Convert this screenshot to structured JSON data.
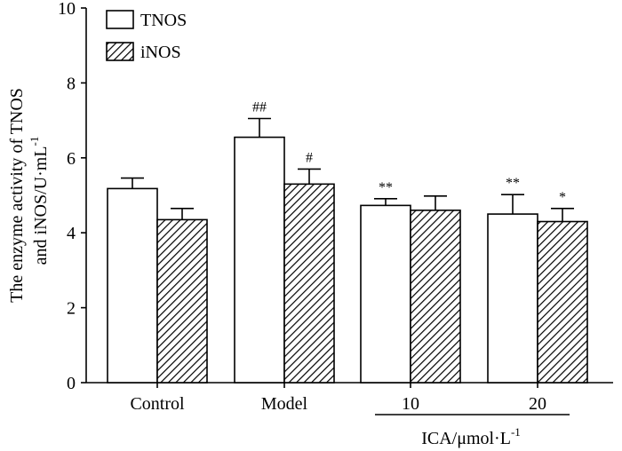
{
  "chart_data": {
    "type": "bar",
    "categories": [
      "Control",
      "Model",
      "10",
      "20"
    ],
    "series": [
      {
        "name": "TNOS",
        "pattern": "solid-white",
        "values": [
          5.18,
          6.55,
          4.73,
          4.5
        ],
        "errors": [
          0.28,
          0.5,
          0.18,
          0.52
        ],
        "annotations": [
          "",
          "##",
          "**",
          "**"
        ]
      },
      {
        "name": "iNOS",
        "pattern": "diagonal-hatch",
        "values": [
          4.35,
          5.3,
          4.6,
          4.3
        ],
        "errors": [
          0.3,
          0.4,
          0.38,
          0.35
        ],
        "annotations": [
          "",
          "#",
          "",
          "*"
        ]
      }
    ],
    "ylim": [
      0,
      10
    ],
    "yticks": [
      "0",
      "2",
      "4",
      "6",
      "8",
      "10"
    ],
    "ylabel_line1": "The enzyme activity of TNOS",
    "ylabel_line2": "and iNOS/U·mL",
    "ylabel_sup": "-1",
    "xlabel": "",
    "group_label": "ICA/μmol·L",
    "group_label_sup": "-1",
    "grouped_categories": [
      "10",
      "20"
    ],
    "legend_position": "top-left",
    "grid": false
  }
}
